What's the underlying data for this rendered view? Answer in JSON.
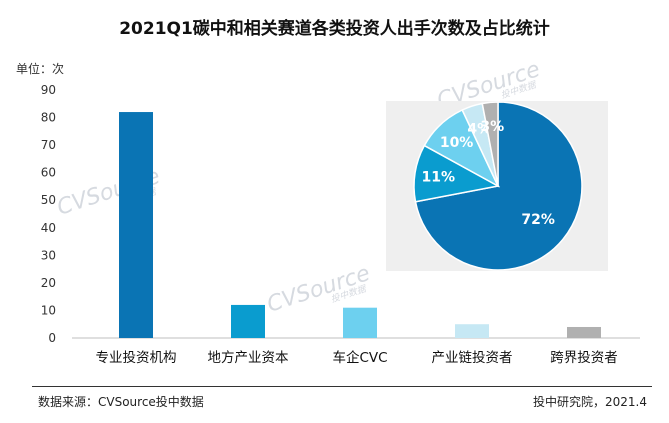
{
  "title": "2021Q1碳中和相关赛道各类投资人出手次数及占比统计",
  "unit_label": "单位：次",
  "watermark": "CVSource",
  "watermark_sub": "投中数据",
  "footer": {
    "source": "数据来源：CVSource投中数据",
    "credit": "投中研究院，2021.4"
  },
  "chart_data": [
    {
      "type": "bar",
      "categories": [
        "专业投资机构",
        "地方产业资本",
        "车企CVC",
        "产业链投资者",
        "跨界投资者"
      ],
      "values": [
        82,
        12,
        11,
        5,
        4
      ],
      "colors": [
        "#0a74b4",
        "#0a9ccf",
        "#6dd0ef",
        "#c6e8f4",
        "#b0b0b0"
      ],
      "ylim": [
        0,
        90
      ],
      "yticks": [
        0,
        10,
        20,
        30,
        40,
        50,
        60,
        70,
        80,
        90
      ],
      "ylabel": "单位：次",
      "grid": false
    },
    {
      "type": "pie",
      "labels": [
        "专业投资机构",
        "地方产业资本",
        "车企CVC",
        "产业链投资者",
        "跨界投资者"
      ],
      "values": [
        72,
        11,
        10,
        4,
        3
      ],
      "value_labels": [
        "72%",
        "11%",
        "10%",
        "4%",
        "3%"
      ],
      "colors": [
        "#0a74b4",
        "#0a9ccf",
        "#6dd0ef",
        "#c6e8f4",
        "#b0b0b0"
      ]
    }
  ]
}
